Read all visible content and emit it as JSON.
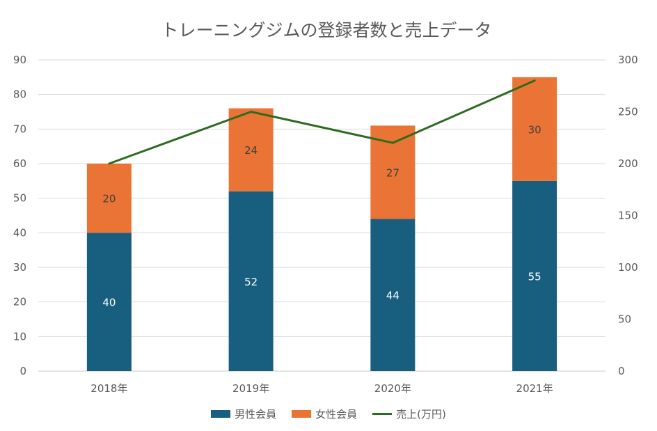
{
  "chart_data": {
    "type": "bar",
    "stacked": true,
    "title": "トレーニングジムの登録者数と売上データ",
    "categories": [
      "2018年",
      "2019年",
      "2020年",
      "2021年"
    ],
    "series": [
      {
        "name": "男性会員",
        "kind": "bar",
        "axis": "left",
        "color": "#185E7F",
        "label_color": "#ffffff",
        "values": [
          40,
          52,
          44,
          55
        ]
      },
      {
        "name": "女性会員",
        "kind": "bar",
        "axis": "left",
        "color": "#EA7435",
        "label_color": "#404040",
        "values": [
          20,
          24,
          27,
          30
        ]
      },
      {
        "name": "売上(万円)",
        "kind": "line",
        "axis": "right",
        "color": "#2E6B21",
        "values": [
          200,
          250,
          220,
          280
        ]
      }
    ],
    "y_left": {
      "min": 0,
      "max": 90,
      "step": 10,
      "ticks": [
        "0",
        "10",
        "20",
        "30",
        "40",
        "50",
        "60",
        "70",
        "80",
        "90"
      ]
    },
    "y_right": {
      "min": 0,
      "max": 300,
      "step": 50,
      "ticks": [
        "0",
        "50",
        "100",
        "150",
        "200",
        "250",
        "300"
      ]
    },
    "grid": true,
    "legend_position": "bottom"
  }
}
